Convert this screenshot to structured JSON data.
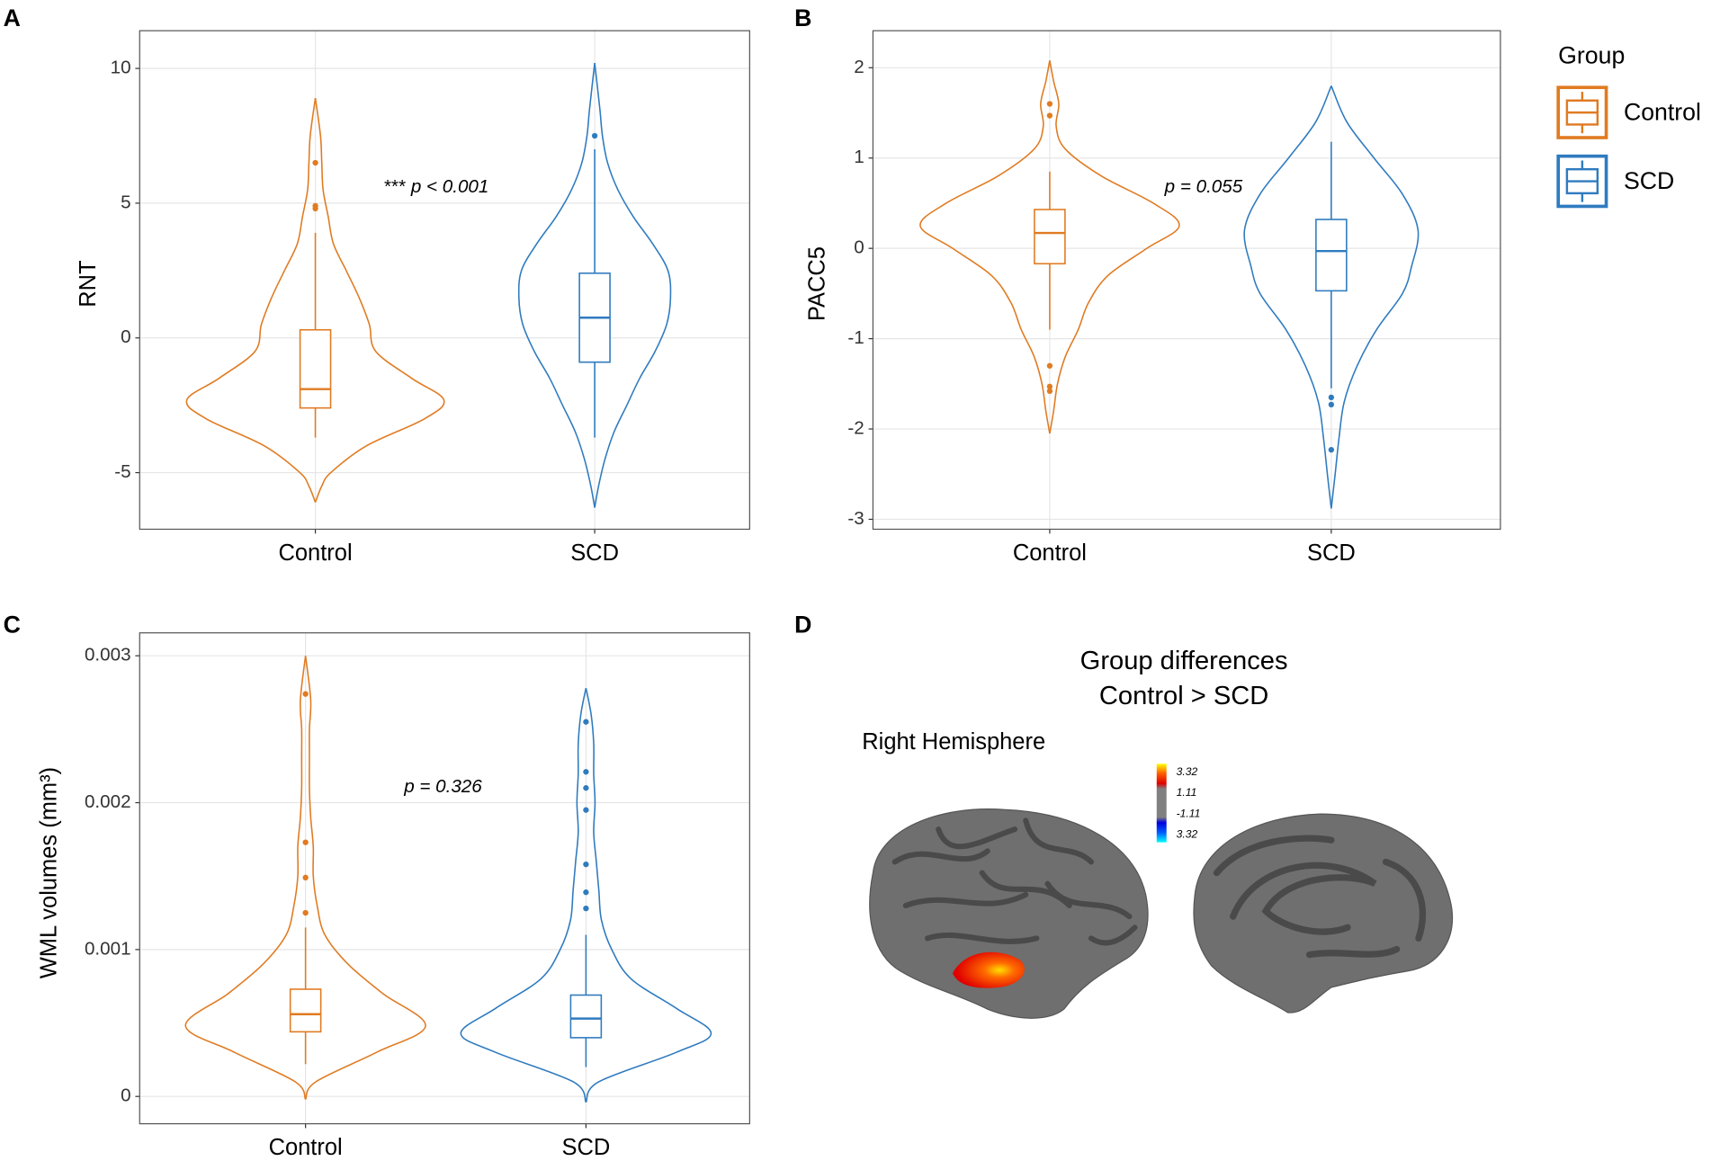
{
  "chart_data": [
    {
      "type": "violin",
      "panel": "A",
      "ylabel": "RNT",
      "categories": [
        "Control",
        "SCD"
      ],
      "annotation": {
        "stars": "***",
        "text": "p < 0.001"
      },
      "ylim": [
        -7.1,
        11.4
      ],
      "yticks": [
        -5,
        0,
        5,
        10
      ],
      "grid": true,
      "series": [
        {
          "name": "Control",
          "color": "#e07b22",
          "whisker_low": -3.7,
          "q1": -2.6,
          "median": -1.9,
          "q3": 0.3,
          "whisker_high": 3.9,
          "outliers": [
            6.5,
            4.9,
            4.8
          ],
          "density_y": [
            -6.1,
            -5.5,
            -5,
            -4,
            -3,
            -2.3,
            -1.5,
            -0.5,
            0.5,
            1.5,
            2.5,
            3.5,
            4.5,
            5.5,
            6.5,
            7.5,
            8.9
          ],
          "density": [
            0,
            0.05,
            0.12,
            0.4,
            0.85,
            1,
            0.75,
            0.47,
            0.42,
            0.34,
            0.24,
            0.14,
            0.1,
            0.06,
            0.05,
            0.04,
            0
          ]
        },
        {
          "name": "SCD",
          "color": "#2f7bbf",
          "whisker_low": -3.7,
          "q1": -0.9,
          "median": 0.75,
          "q3": 2.4,
          "whisker_high": 7.0,
          "outliers": [
            7.5
          ],
          "density_y": [
            -6.3,
            -5.5,
            -4.5,
            -3.5,
            -2.5,
            -1.5,
            -0.5,
            0.5,
            1.5,
            2.5,
            3.5,
            4.5,
            5.5,
            6.5,
            7.5,
            8.5,
            10.2
          ],
          "density": [
            0,
            0.03,
            0.08,
            0.15,
            0.25,
            0.35,
            0.47,
            0.56,
            0.59,
            0.57,
            0.45,
            0.3,
            0.18,
            0.1,
            0.06,
            0.04,
            0
          ]
        }
      ]
    },
    {
      "type": "violin",
      "panel": "B",
      "ylabel": "PACC5",
      "categories": [
        "Control",
        "SCD"
      ],
      "annotation": {
        "text": "p = 0.055"
      },
      "ylim": [
        -3.11,
        2.41
      ],
      "yticks": [
        -3,
        -2,
        -1,
        0,
        1,
        2
      ],
      "grid": true,
      "series": [
        {
          "name": "Control",
          "color": "#e07b22",
          "whisker_low": -0.9,
          "q1": -0.17,
          "median": 0.17,
          "q3": 0.43,
          "whisker_high": 0.85,
          "outliers": [
            1.6,
            1.47,
            -1.3,
            -1.53,
            -1.58
          ],
          "density_y": [
            -2.05,
            -1.8,
            -1.5,
            -1.2,
            -0.9,
            -0.6,
            -0.3,
            0,
            0.25,
            0.5,
            0.8,
            1.1,
            1.35,
            1.6,
            1.85,
            2.08
          ],
          "density": [
            0,
            0.03,
            0.06,
            0.12,
            0.22,
            0.3,
            0.45,
            0.75,
            1,
            0.8,
            0.4,
            0.12,
            0.05,
            0.07,
            0.03,
            0
          ]
        },
        {
          "name": "SCD",
          "color": "#2f7bbf",
          "whisker_low": -1.55,
          "q1": -0.47,
          "median": -0.03,
          "q3": 0.32,
          "whisker_high": 1.18,
          "outliers": [
            -1.65,
            -1.73,
            -2.23
          ],
          "density_y": [
            -2.88,
            -2.5,
            -2.1,
            -1.7,
            -1.3,
            -0.9,
            -0.5,
            -0.2,
            0.2,
            0.6,
            1.0,
            1.4,
            1.8
          ],
          "density": [
            0,
            0.03,
            0.06,
            0.1,
            0.2,
            0.35,
            0.55,
            0.62,
            0.67,
            0.55,
            0.33,
            0.12,
            0
          ]
        }
      ]
    },
    {
      "type": "violin",
      "panel": "C",
      "ylabel": "WML volumes (mm³)",
      "categories": [
        "Control",
        "SCD"
      ],
      "annotation": {
        "text": "p = 0.326"
      },
      "ylim": [
        -0.000186,
        0.003156
      ],
      "yticks": [
        0,
        0.001,
        0.002,
        0.003
      ],
      "grid": true,
      "series": [
        {
          "name": "Control",
          "color": "#e07b22",
          "whisker_low": 0.00022,
          "q1": 0.00044,
          "median": 0.00056,
          "q3": 0.00073,
          "whisker_high": 0.00115,
          "outliers": [
            0.00274,
            0.00173,
            0.00149,
            0.00125
          ],
          "density_y": [
            -2e-05,
            0.0001,
            0.0003,
            0.00048,
            0.0007,
            0.0009,
            0.0011,
            0.0013,
            0.0015,
            0.0017,
            0.0019,
            0.0021,
            0.0023,
            0.0025,
            0.0027,
            0.003
          ],
          "density": [
            0,
            0.08,
            0.55,
            0.93,
            0.6,
            0.33,
            0.15,
            0.09,
            0.06,
            0.06,
            0.04,
            0.03,
            0.03,
            0.03,
            0.04,
            0
          ]
        },
        {
          "name": "SCD",
          "color": "#2f7bbf",
          "whisker_low": 0.0002,
          "q1": 0.0004,
          "median": 0.00053,
          "q3": 0.00069,
          "whisker_high": 0.0011,
          "outliers": [
            0.00255,
            0.00221,
            0.0021,
            0.00195,
            0.00158,
            0.00139,
            0.00128
          ],
          "density_y": [
            -4e-05,
            0.0001,
            0.0003,
            0.00043,
            0.0006,
            0.0008,
            0.001,
            0.0012,
            0.0014,
            0.0016,
            0.0018,
            0.002,
            0.0022,
            0.0024,
            0.0026,
            0.00278
          ],
          "density": [
            0,
            0.1,
            0.7,
            0.97,
            0.7,
            0.35,
            0.2,
            0.12,
            0.1,
            0.08,
            0.06,
            0.07,
            0.06,
            0.06,
            0.04,
            0
          ]
        }
      ]
    }
  ],
  "legend": {
    "title": "Group"
  },
  "panel_d": {
    "letter": "D",
    "title": [
      "Group differences",
      "Control > SCD"
    ],
    "subtitle": "Right Hemisphere",
    "colorbar_labels": [
      "3.32",
      "1.11",
      "-1.11",
      "3.32"
    ]
  }
}
